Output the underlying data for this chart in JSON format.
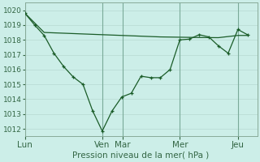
{
  "background_color": "#cceee8",
  "grid_color": "#bbddd6",
  "line_color": "#1a5c28",
  "ylabel": "Pression niveau de la mer( hPa )",
  "ylim": [
    1011.5,
    1020.5
  ],
  "yticks": [
    1012,
    1013,
    1014,
    1015,
    1016,
    1017,
    1018,
    1019,
    1020
  ],
  "day_labels": [
    "Lun",
    "Ven",
    "Mar",
    "Mer",
    "Jeu"
  ],
  "day_positions": [
    0.0,
    0.333,
    0.42,
    0.667,
    0.917
  ],
  "xlim": [
    0.0,
    1.0
  ],
  "series1_x": [
    0.0,
    0.042,
    0.083,
    0.125,
    0.167,
    0.208,
    0.25,
    0.292,
    0.333,
    0.375,
    0.417,
    0.458,
    0.5,
    0.542,
    0.583,
    0.625,
    0.667,
    0.708,
    0.75,
    0.792,
    0.833,
    0.875,
    0.917,
    0.958
  ],
  "series1_y": [
    1019.8,
    1019.0,
    1018.3,
    1017.1,
    1016.2,
    1015.5,
    1015.0,
    1013.2,
    1011.85,
    1013.2,
    1014.15,
    1014.4,
    1015.55,
    1015.45,
    1015.45,
    1016.0,
    1018.0,
    1018.05,
    1018.35,
    1018.2,
    1017.6,
    1017.1,
    1018.7,
    1018.35
  ],
  "series2_x": [
    0.0,
    0.083,
    0.167,
    0.25,
    0.333,
    0.417,
    0.5,
    0.583,
    0.667,
    0.75,
    0.833,
    0.917,
    0.958
  ],
  "series2_y": [
    1019.8,
    1018.5,
    1018.45,
    1018.4,
    1018.35,
    1018.3,
    1018.25,
    1018.2,
    1018.18,
    1018.16,
    1018.15,
    1018.3,
    1018.3
  ],
  "vline_color": "#7aaa99",
  "tick_color": "#336644",
  "tick_fontsize": 6.5,
  "label_fontsize": 7.5,
  "xtick_fontsize": 7.5
}
